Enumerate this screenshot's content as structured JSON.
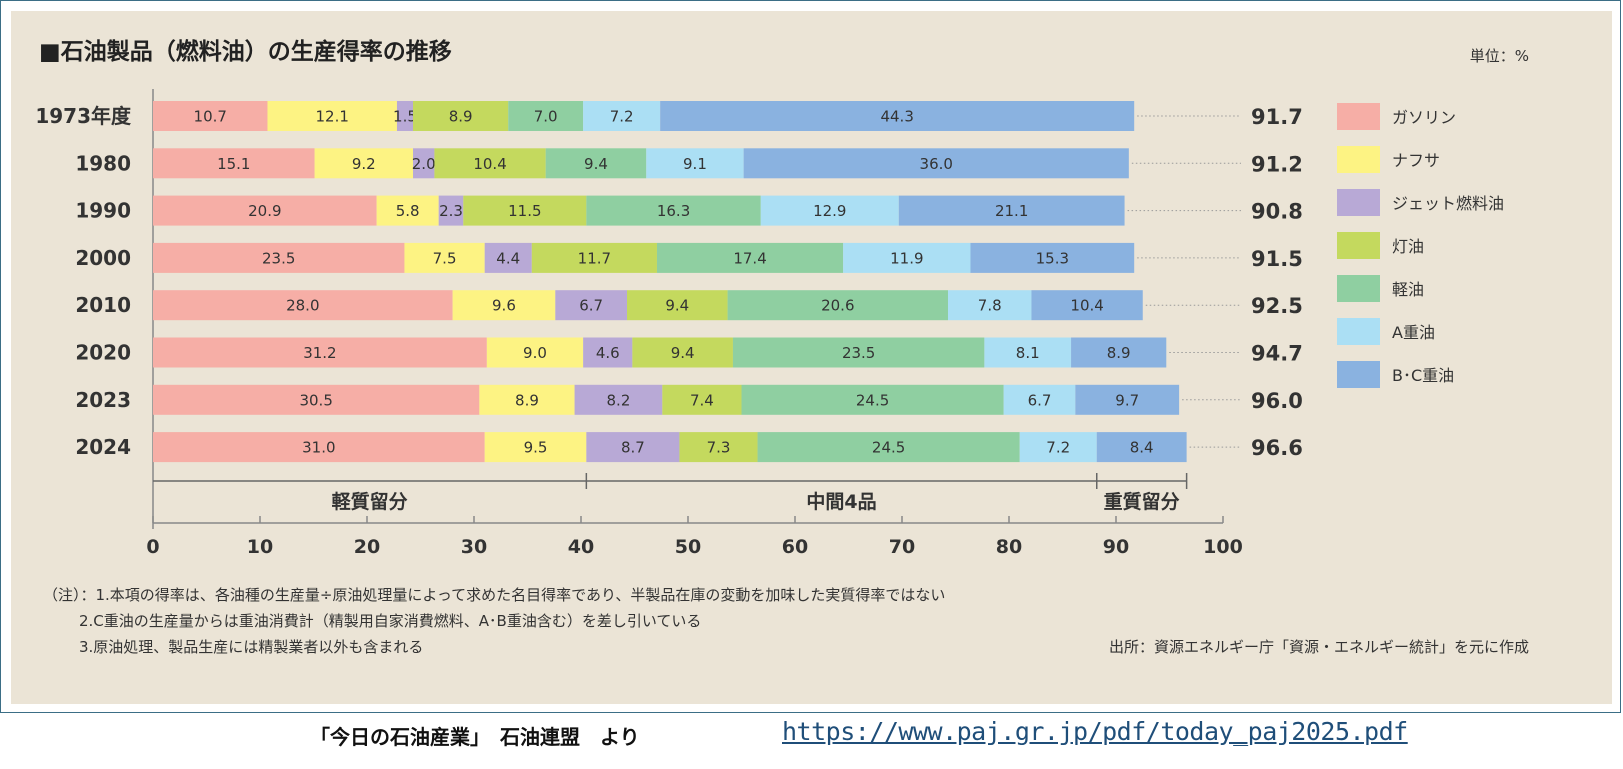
{
  "chart_data": {
    "type": "bar",
    "orientation": "horizontal",
    "stacked": true,
    "title": "■石油製品（燃料油）の生産得率の推移",
    "unit": "単位：%",
    "categories": [
      "1973年度",
      "1980",
      "1990",
      "2000",
      "2010",
      "2020",
      "2023",
      "2024"
    ],
    "series": [
      {
        "name": "ガソリン",
        "color": "#f6aea6",
        "values": [
          10.7,
          15.1,
          20.9,
          23.5,
          28.0,
          31.2,
          30.5,
          31.0
        ]
      },
      {
        "name": "ナフサ",
        "color": "#fdf383",
        "values": [
          12.1,
          9.2,
          5.8,
          7.5,
          9.6,
          9.0,
          8.9,
          9.5
        ]
      },
      {
        "name": "ジェット燃料油",
        "color": "#b8a9d6",
        "values": [
          1.5,
          2.0,
          2.3,
          4.4,
          6.7,
          4.6,
          8.2,
          8.7
        ]
      },
      {
        "name": "灯油",
        "color": "#c4d95e",
        "values": [
          8.9,
          10.4,
          11.5,
          11.7,
          9.4,
          9.4,
          7.4,
          7.3
        ]
      },
      {
        "name": "軽油",
        "color": "#8fcfa1",
        "values": [
          7.0,
          9.4,
          16.3,
          17.4,
          20.6,
          23.5,
          24.5,
          24.5
        ]
      },
      {
        "name": "A重油",
        "color": "#abdff4",
        "values": [
          7.2,
          9.1,
          12.9,
          11.9,
          7.8,
          8.1,
          6.7,
          7.2
        ]
      },
      {
        "name": "B･C重油",
        "color": "#8ab2e0",
        "values": [
          44.3,
          36.0,
          21.1,
          15.3,
          10.4,
          8.9,
          9.7,
          8.4
        ]
      }
    ],
    "totals": [
      91.7,
      91.2,
      90.8,
      91.5,
      92.5,
      94.7,
      96.0,
      96.6
    ],
    "xlim": [
      0,
      100
    ],
    "xticks": [
      0,
      10,
      20,
      30,
      40,
      50,
      60,
      70,
      80,
      90,
      100
    ],
    "groups": [
      {
        "label": "軽質留分",
        "from": 0,
        "to": 40.5
      },
      {
        "label": "中間4品",
        "from": 40.5,
        "to": 88.2
      },
      {
        "label": "重質留分",
        "from": 88.2,
        "to": 96.6
      }
    ],
    "legend_position": "right",
    "grid": false,
    "notes": [
      "（注）：1.本項の得率は、各油種の生産量÷原油処理量によって求めた名目得率であり、半製品在庫の変動を加味した実質得率ではない",
      "2.C重油の生産量からは重油消費計（精製用自家消費燃料、A･B重油含む）を差し引いている",
      "3.原油処理、製品生産には精製業者以外も含まれる"
    ],
    "source": "出所：資源エネルギー庁「資源・エネルギー統計」を元に作成"
  },
  "footer": {
    "credit": "「今日の石油産業」　石油連盟　より",
    "url": "https://www.paj.gr.jp/pdf/today_paj2025.pdf"
  }
}
